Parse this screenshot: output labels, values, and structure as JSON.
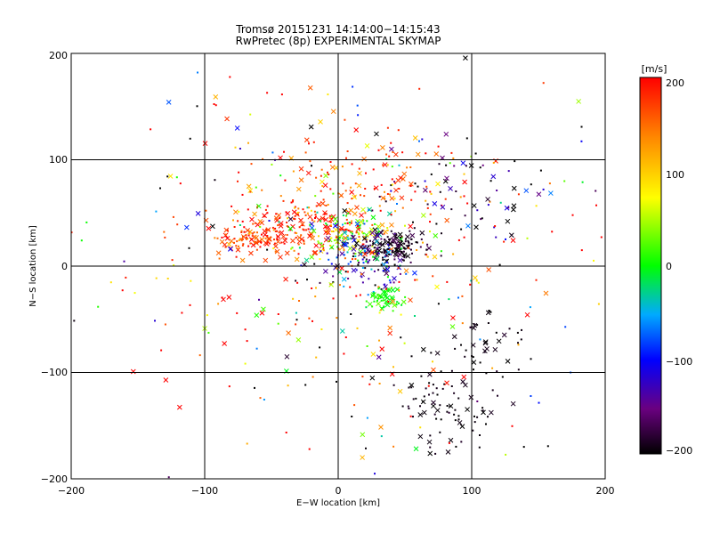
{
  "chart_data": {
    "type": "scatter",
    "title": "Tromsø 20151231 14:14:00−14:15:43",
    "subtitle": "RwPretec (8p) EXPERIMENTAL SKYMAP",
    "xlabel": "E−W location [km]",
    "ylabel": "N−S location [km]",
    "xlim": [
      -200,
      200
    ],
    "ylim": [
      -200,
      200
    ],
    "x_ticks": [
      "−200",
      "−100",
      "0",
      "100",
      "200"
    ],
    "y_ticks": [
      "−200",
      "−100",
      "0",
      "100",
      "200"
    ],
    "grid": true,
    "colorbar": {
      "label": "[m/s]",
      "range": [
        -200,
        200
      ],
      "ticks": [
        "−200",
        "−100",
        "0",
        "100",
        "200"
      ]
    },
    "clusters": [
      {
        "x": -30,
        "y": 38,
        "sx": 28,
        "sy": 14,
        "v": 185,
        "vs": 20,
        "n": 160
      },
      {
        "x": -62,
        "y": 25,
        "sx": 14,
        "sy": 6,
        "v": 165,
        "vs": 25,
        "n": 70
      },
      {
        "x": 10,
        "y": 30,
        "sx": 18,
        "sy": 12,
        "v": 45,
        "vs": 70,
        "n": 150
      },
      {
        "x": 40,
        "y": 18,
        "sx": 12,
        "sy": 8,
        "v": -190,
        "vs": 12,
        "n": 140
      },
      {
        "x": 22,
        "y": 4,
        "sx": 18,
        "sy": 12,
        "v": -120,
        "vs": 60,
        "n": 90
      },
      {
        "x": 36,
        "y": -30,
        "sx": 7,
        "sy": 6,
        "v": 5,
        "vs": 12,
        "n": 55
      },
      {
        "x": 85,
        "y": -125,
        "sx": 20,
        "sy": 22,
        "v": -195,
        "vs": 6,
        "n": 90
      },
      {
        "x": 110,
        "y": -72,
        "sx": 15,
        "sy": 12,
        "v": -195,
        "vs": 6,
        "n": 35
      },
      {
        "x": 25,
        "y": 80,
        "sx": 35,
        "sy": 20,
        "v": 170,
        "vs": 40,
        "n": 100
      },
      {
        "x": 100,
        "y": 60,
        "sx": 40,
        "sy": 25,
        "v": -150,
        "vs": 80,
        "n": 70
      },
      {
        "x": 0,
        "y": 10,
        "sx": 80,
        "sy": 60,
        "v": 160,
        "vs": 70,
        "n": 180
      },
      {
        "x": 0,
        "y": 0,
        "sx": 115,
        "sy": 110,
        "v": 0,
        "vs": 230,
        "n": 240
      }
    ]
  }
}
